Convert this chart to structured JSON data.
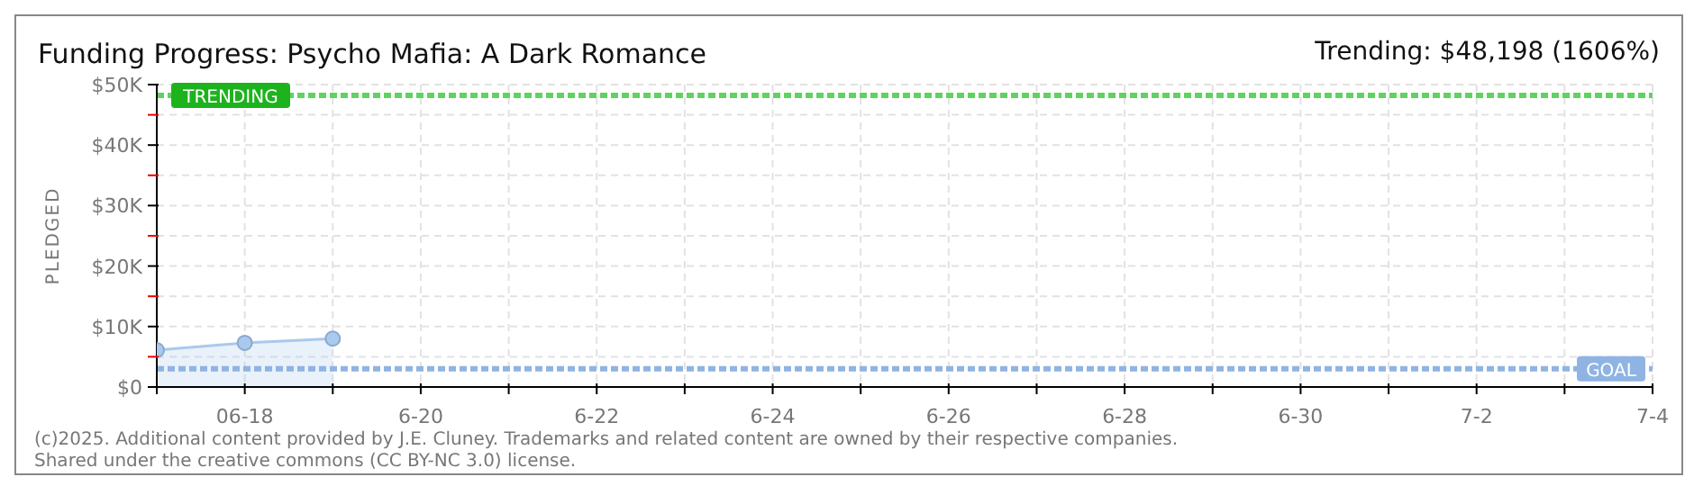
{
  "chart_data": {
    "type": "area",
    "title": "Funding Progress: Psycho Mafia: A Dark Romance",
    "subtitle": "Trending: $48,198 (1606%)",
    "ylabel": "PLEDGED",
    "x": [
      "--06-17",
      "--06-18",
      "--06-19"
    ],
    "series": [
      {
        "color": "#a9c9ee",
        "values": [
          6100,
          7300,
          8000
        ]
      }
    ],
    "xlim": [
      "--06-17",
      "--07-04"
    ],
    "xticks": [
      {
        "value": "--06-17",
        "label": null
      },
      {
        "value": "--06-18",
        "label": "06-18"
      },
      {
        "value": "--06-19",
        "label": null
      },
      {
        "value": "--06-20",
        "label": "6-20"
      },
      {
        "value": "--06-21",
        "label": null
      },
      {
        "value": "--06-22",
        "label": "6-22"
      },
      {
        "value": "--06-23",
        "label": null
      },
      {
        "value": "--06-24",
        "label": "6-24"
      },
      {
        "value": "--06-25",
        "label": null
      },
      {
        "value": "--06-26",
        "label": "6-26"
      },
      {
        "value": "--06-27",
        "label": null
      },
      {
        "value": "--06-28",
        "label": "6-28"
      },
      {
        "value": "--06-29",
        "label": null
      },
      {
        "value": "--06-30",
        "label": "6-30"
      },
      {
        "value": "--07-01",
        "label": null
      },
      {
        "value": "--07-02",
        "label": "7-2"
      },
      {
        "value": "--07-03",
        "label": null
      },
      {
        "value": "--07-04",
        "label": "7-4"
      }
    ],
    "ylim": [
      0,
      50000
    ],
    "yticks": [
      {
        "value": 0,
        "label": "$0"
      },
      {
        "value": 5000,
        "label": null
      },
      {
        "value": 10000,
        "label": "$10K"
      },
      {
        "value": 15000,
        "label": null
      },
      {
        "value": 20000,
        "label": "$20K"
      },
      {
        "value": 25000,
        "label": null
      },
      {
        "value": 30000,
        "label": "$30K"
      },
      {
        "value": 35000,
        "label": null
      },
      {
        "value": 40000,
        "label": "$40K"
      },
      {
        "value": 45000,
        "label": null
      },
      {
        "value": 50000,
        "label": "$50K"
      }
    ],
    "ref_lines": [
      {
        "axis": "y",
        "value": 48198,
        "label": "TRENDING",
        "color": "#5fd35f",
        "line_style": "dashed"
      },
      {
        "axis": "y",
        "value": 3000,
        "label": "GOAL",
        "color": "#8fb4e3",
        "line_style": "dashed"
      }
    ],
    "grid": true,
    "marker": "circle",
    "annotations": [
      "(c)2025. Additional content provided by J.E. Cluney. Trademarks and related content are owned by their respective companies.",
      "Shared under the creative commons (CC BY-NC 3.0) license."
    ]
  }
}
